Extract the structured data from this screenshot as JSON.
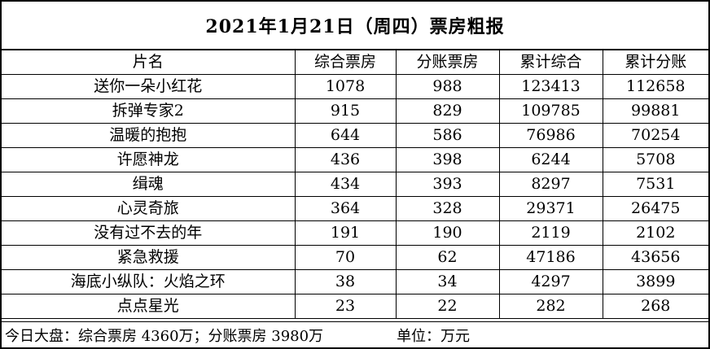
{
  "title": "2021年1月21日（周四）票房粗报",
  "headers": [
    "片名",
    "综合票房",
    "分账票房",
    "累计综合",
    "累计分账"
  ],
  "rows": [
    [
      "送你一朵小红花",
      "1078",
      "988",
      "123413",
      "112658"
    ],
    [
      "拆弹专家2",
      "915",
      "829",
      "109785",
      "99881"
    ],
    [
      "温暖的抱抱",
      "644",
      "586",
      "76986",
      "70254"
    ],
    [
      "许愿神龙",
      "436",
      "398",
      "6244",
      "5708"
    ],
    [
      "缉魂",
      "434",
      "393",
      "8297",
      "7531"
    ],
    [
      "心灵奇旅",
      "364",
      "328",
      "29371",
      "26475"
    ],
    [
      "没有过不去的年",
      "191",
      "190",
      "2119",
      "2102"
    ],
    [
      "紧急救援",
      "70",
      "62",
      "47186",
      "43656"
    ],
    [
      "海底小纵队：火焰之环",
      "38",
      "34",
      "4297",
      "3899"
    ],
    [
      "点点星光",
      "23",
      "22",
      "282",
      "268"
    ]
  ],
  "footer": {
    "summary": "今日大盘：综合票房 4360万；分账票房 3980万",
    "unit": "单位：万元"
  }
}
